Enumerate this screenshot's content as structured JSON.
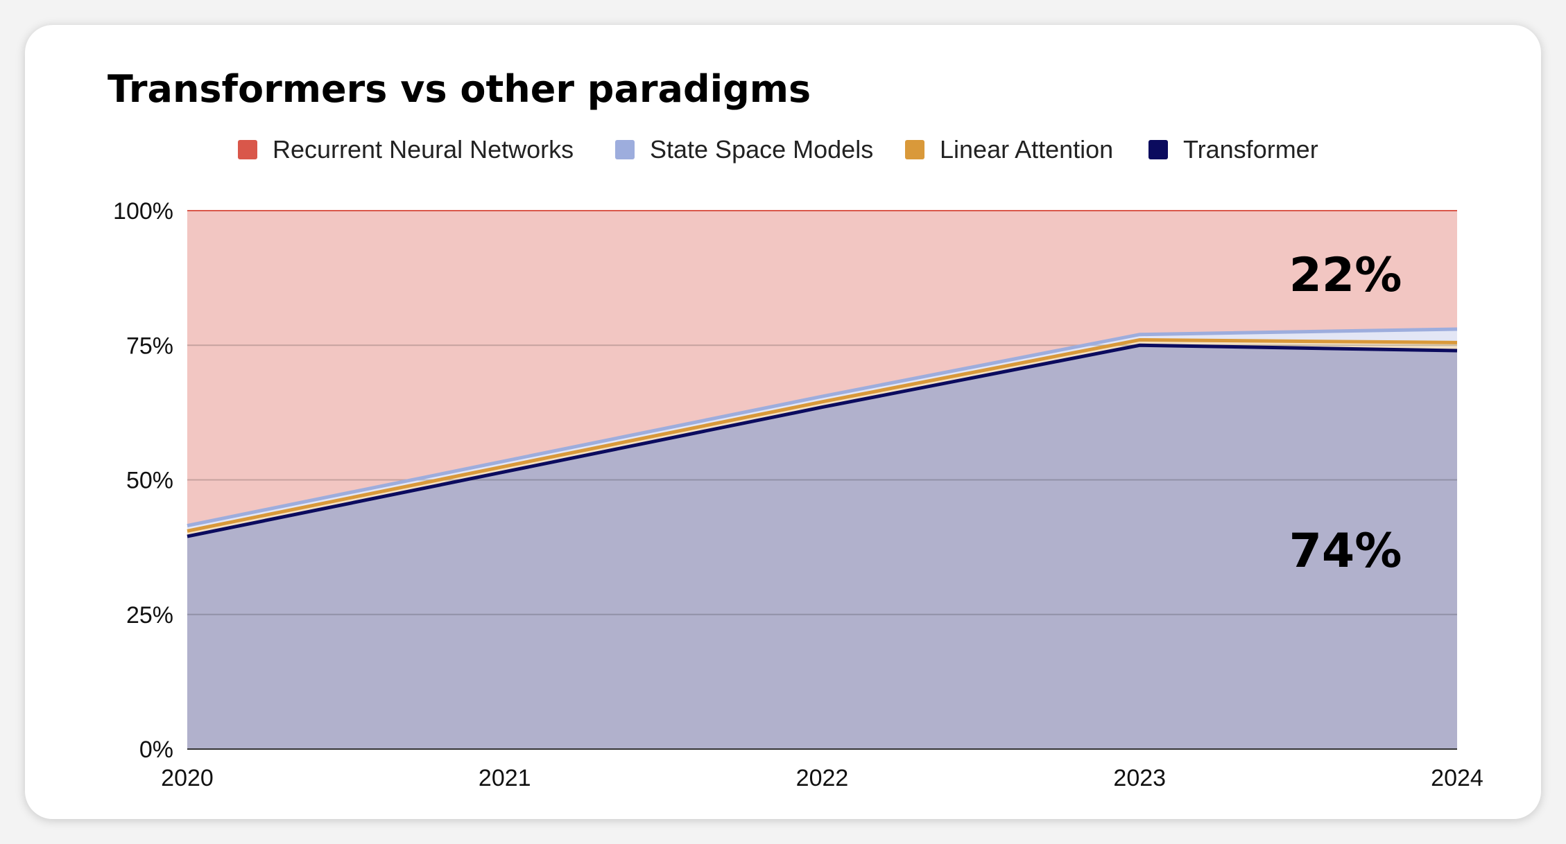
{
  "chart_data": {
    "type": "area",
    "stacked": true,
    "title": "Transformers vs other paradigms",
    "x": [
      "2020",
      "2021",
      "2022",
      "2023",
      "2024"
    ],
    "ylim": [
      0,
      100
    ],
    "yticks": [
      "0%",
      "25%",
      "50%",
      "75%",
      "100%"
    ],
    "ytick_values": [
      0,
      25,
      50,
      75,
      100
    ],
    "grid": true,
    "legend_position": "top",
    "series": [
      {
        "name": "Transformer",
        "color": "#0b0b5e",
        "fill": "#b1b1cc",
        "values": [
          39.5,
          51.5,
          63.5,
          75,
          74
        ]
      },
      {
        "name": "Linear Attention",
        "color": "#d9993a",
        "fill": "#f2e0c4",
        "values": [
          1,
          1,
          1,
          1,
          1.5
        ]
      },
      {
        "name": "State Space Models",
        "color": "#9daddd",
        "fill": "#e3e6f5",
        "values": [
          1,
          1,
          1,
          1,
          2.5
        ]
      },
      {
        "name": "Recurrent Neural Networks",
        "color": "#d9574a",
        "fill": "#f2c6c2",
        "values": [
          58.5,
          46.5,
          34.5,
          23,
          22
        ]
      }
    ],
    "legend_order": [
      "Recurrent Neural Networks",
      "State Space Models",
      "Linear Attention",
      "Transformer"
    ],
    "annotations": [
      {
        "text": "22%",
        "series": "Recurrent Neural Networks",
        "x": "2024"
      },
      {
        "text": "74%",
        "series": "Transformer",
        "x": "2024"
      }
    ]
  }
}
